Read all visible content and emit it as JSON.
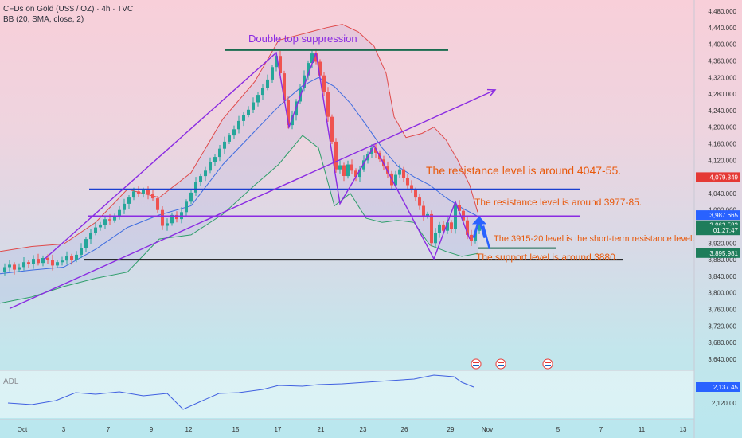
{
  "header": {
    "symbol_line": "CFDs on Gold (US$ / OZ) · 4h · TVC",
    "indicator_line": "BB (20, SMA, close, 2)",
    "adl_label": "ADL"
  },
  "colors": {
    "bull": "#26a69a",
    "bear": "#ef5350",
    "bb_upper": "#e04a4a",
    "bb_basis": "#3f6de0",
    "bb_lower": "#2e9e6a",
    "purple": "#8a2be2",
    "blue_line": "#1a3fd0",
    "black_line": "#111111",
    "dark_green_line": "#1a6b4f",
    "annotation_text": "#e8590c",
    "adl_line": "#3f5fe0"
  },
  "chart_data": {
    "type": "candlestick",
    "title": "CFDs on Gold (US$ / OZ) · 4h · TVC",
    "x_axis": {
      "ticks": [
        "Oct",
        "3",
        "7",
        "9",
        "12",
        "15",
        "17",
        "21",
        "23",
        "26",
        "29",
        "Nov",
        "5",
        "7",
        "11",
        "13"
      ]
    },
    "y_axis": {
      "range": [
        3620,
        4490
      ],
      "ticks": [
        "4,480.000",
        "4,440.000",
        "4,400.000",
        "4,360.000",
        "4,320.000",
        "4,280.000",
        "4,240.000",
        "4,200.000",
        "4,160.000",
        "4,120.000",
        "4,040.000",
        "4,000.000",
        "3,920.000",
        "3,880.000",
        "3,840.000",
        "3,800.000",
        "3,760.000",
        "3,720.000",
        "3,680.000",
        "3,640.000"
      ]
    },
    "price_labels": [
      {
        "text": "4,079.349",
        "value": 4079.349,
        "color": "#e53935"
      },
      {
        "text": "3,987.665",
        "value": 3987.665,
        "color": "#2962ff"
      },
      {
        "text": "3,963.582",
        "value": 3963.582,
        "color": "#1e7d5b"
      },
      {
        "text": "01:27:47",
        "value": 3951,
        "color": "#1e7d5b"
      },
      {
        "text": "3,895.981",
        "value": 3895.981,
        "color": "#1e7d5b"
      }
    ],
    "series": [
      {
        "name": "CFDs on Gold",
        "kind": "ohlc_close_path",
        "points": [
          [
            0,
            3850
          ],
          [
            6,
            3862
          ],
          [
            12,
            3868
          ],
          [
            18,
            3856
          ],
          [
            24,
            3862
          ],
          [
            30,
            3874
          ],
          [
            36,
            3870
          ],
          [
            42,
            3882
          ],
          [
            48,
            3872
          ],
          [
            54,
            3884
          ],
          [
            60,
            3880
          ],
          [
            66,
            3866
          ],
          [
            72,
            3874
          ],
          [
            78,
            3878
          ],
          [
            84,
            3888
          ],
          [
            90,
            3880
          ],
          [
            96,
            3892
          ],
          [
            102,
            3908
          ],
          [
            108,
            3930
          ],
          [
            114,
            3945
          ],
          [
            120,
            3958
          ],
          [
            126,
            3965
          ],
          [
            132,
            3978
          ],
          [
            138,
            3975
          ],
          [
            144,
            3985
          ],
          [
            150,
            4000
          ],
          [
            156,
            4015
          ],
          [
            162,
            4030
          ],
          [
            168,
            4045
          ],
          [
            174,
            4040
          ],
          [
            180,
            4048
          ],
          [
            186,
            4038
          ],
          [
            192,
            4028
          ],
          [
            198,
            4000
          ],
          [
            204,
            3962
          ],
          [
            210,
            3968
          ],
          [
            216,
            3988
          ],
          [
            222,
            3978
          ],
          [
            228,
            3995
          ],
          [
            234,
            4020
          ],
          [
            240,
            4042
          ],
          [
            246,
            4068
          ],
          [
            252,
            4082
          ],
          [
            258,
            4095
          ],
          [
            264,
            4115
          ],
          [
            270,
            4128
          ],
          [
            276,
            4148
          ],
          [
            282,
            4165
          ],
          [
            288,
            4180
          ],
          [
            294,
            4195
          ],
          [
            300,
            4215
          ],
          [
            306,
            4230
          ],
          [
            312,
            4242
          ],
          [
            318,
            4260
          ],
          [
            324,
            4278
          ],
          [
            330,
            4295
          ],
          [
            336,
            4315
          ],
          [
            342,
            4345
          ],
          [
            347,
            4372
          ],
          [
            352,
            4330
          ],
          [
            357,
            4265
          ],
          [
            362,
            4205
          ],
          [
            367,
            4228
          ],
          [
            372,
            4262
          ],
          [
            377,
            4295
          ],
          [
            382,
            4325
          ],
          [
            387,
            4355
          ],
          [
            392,
            4378
          ],
          [
            397,
            4358
          ],
          [
            402,
            4325
          ],
          [
            407,
            4285
          ],
          [
            412,
            4225
          ],
          [
            417,
            4165
          ],
          [
            422,
            4098
          ],
          [
            427,
            4108
          ],
          [
            432,
            4082
          ],
          [
            437,
            4110
          ],
          [
            442,
            4095
          ],
          [
            447,
            4080
          ],
          [
            452,
            4098
          ],
          [
            457,
            4120
          ],
          [
            462,
            4135
          ],
          [
            467,
            4150
          ],
          [
            472,
            4138
          ],
          [
            477,
            4122
          ],
          [
            482,
            4105
          ],
          [
            487,
            4088
          ],
          [
            492,
            4060
          ],
          [
            497,
            4085
          ],
          [
            502,
            4098
          ],
          [
            507,
            4078
          ],
          [
            512,
            4060
          ],
          [
            517,
            4048
          ],
          [
            522,
            4030
          ],
          [
            527,
            4010
          ],
          [
            532,
            3985
          ],
          [
            537,
            3990
          ],
          [
            542,
            3920
          ],
          [
            547,
            3945
          ],
          [
            552,
            3965
          ],
          [
            557,
            3950
          ],
          [
            562,
            3970
          ],
          [
            567,
            3955
          ],
          [
            572,
            4012
          ],
          [
            577,
            3998
          ],
          [
            582,
            3975
          ],
          [
            587,
            3940
          ],
          [
            592,
            3925
          ],
          [
            597,
            3950
          ],
          [
            602,
            3963
          ]
        ]
      },
      {
        "name": "BB upper",
        "kind": "band"
      },
      {
        "name": "BB basis",
        "kind": "band"
      },
      {
        "name": "BB lower",
        "kind": "band"
      }
    ],
    "bb_upper": [
      [
        0,
        3900
      ],
      [
        40,
        3912
      ],
      [
        80,
        3918
      ],
      [
        120,
        3970
      ],
      [
        160,
        4050
      ],
      [
        200,
        4030
      ],
      [
        240,
        4090
      ],
      [
        280,
        4220
      ],
      [
        320,
        4310
      ],
      [
        350,
        4410
      ],
      [
        380,
        4425
      ],
      [
        410,
        4440
      ],
      [
        430,
        4448
      ],
      [
        450,
        4430
      ],
      [
        470,
        4395
      ],
      [
        485,
        4330
      ],
      [
        495,
        4225
      ],
      [
        510,
        4175
      ],
      [
        530,
        4185
      ],
      [
        545,
        4200
      ],
      [
        560,
        4170
      ],
      [
        575,
        4120
      ],
      [
        590,
        4060
      ],
      [
        600,
        3995
      ]
    ],
    "bb_basis": [
      [
        0,
        3846
      ],
      [
        40,
        3855
      ],
      [
        80,
        3862
      ],
      [
        120,
        3905
      ],
      [
        160,
        3958
      ],
      [
        200,
        3988
      ],
      [
        240,
        4010
      ],
      [
        280,
        4110
      ],
      [
        320,
        4190
      ],
      [
        350,
        4250
      ],
      [
        380,
        4300
      ],
      [
        400,
        4320
      ],
      [
        420,
        4298
      ],
      [
        440,
        4258
      ],
      [
        460,
        4205
      ],
      [
        480,
        4150
      ],
      [
        500,
        4105
      ],
      [
        520,
        4080
      ],
      [
        540,
        4060
      ],
      [
        560,
        4030
      ],
      [
        580,
        4005
      ],
      [
        600,
        3985
      ]
    ],
    "bb_lower": [
      [
        0,
        3775
      ],
      [
        40,
        3790
      ],
      [
        80,
        3815
      ],
      [
        120,
        3835
      ],
      [
        160,
        3850
      ],
      [
        200,
        3930
      ],
      [
        240,
        3940
      ],
      [
        280,
        3990
      ],
      [
        320,
        4060
      ],
      [
        350,
        4110
      ],
      [
        380,
        4180
      ],
      [
        400,
        4150
      ],
      [
        420,
        4010
      ],
      [
        440,
        4040
      ],
      [
        460,
        3980
      ],
      [
        480,
        3970
      ],
      [
        500,
        3975
      ],
      [
        520,
        3970
      ],
      [
        540,
        3915
      ],
      [
        560,
        3900
      ],
      [
        580,
        3888
      ],
      [
        600,
        3895
      ]
    ],
    "annotations": {
      "texts": [
        {
          "text": "Double top suppression",
          "x": 312,
          "price": 4405,
          "color": "#8a2be2",
          "size": 13
        },
        {
          "text": "The resistance level is around 4047-55.",
          "x": 535,
          "price": 4086,
          "color": "#e8590c",
          "size": 14
        },
        {
          "text": "The resistance level is around 3977-85.",
          "x": 596,
          "price": 4011,
          "color": "#e8590c",
          "size": 12
        },
        {
          "text": "The 3915-20 level is the short-term resistance level.",
          "x": 620,
          "price": 3924,
          "color": "#e8590c",
          "size": 11
        },
        {
          "text": "The support level is around 3880.",
          "x": 598,
          "price": 3878,
          "color": "#e8590c",
          "size": 12
        }
      ],
      "hlines": [
        {
          "x1": 283,
          "x2": 563,
          "price": 4386,
          "color": "#1a6b4f",
          "width": 2
        },
        {
          "x1": 112,
          "x2": 728,
          "price": 4050,
          "color": "#1a3fd0",
          "width": 2
        },
        {
          "x1": 110,
          "x2": 728,
          "price": 3985,
          "color": "#8a2be2",
          "width": 2
        },
        {
          "x1": 600,
          "x2": 698,
          "price": 3908,
          "color": "#1a6b4f",
          "width": 2
        },
        {
          "x1": 106,
          "x2": 782,
          "price": 3880,
          "color": "#111111",
          "width": 2
        }
      ],
      "pattern_lines": [
        {
          "points": [
            [
              55,
              3880
            ],
            [
              347,
              4380
            ],
            [
              363,
              4200
            ],
            [
              397,
              4380
            ],
            [
              427,
              4015
            ],
            [
              470,
              4155
            ],
            [
              545,
              3882
            ],
            [
              572,
              4020
            ],
            [
              590,
              3930
            ]
          ],
          "color": "#8a2be2"
        }
      ],
      "trend_arrow": {
        "from": [
          12,
          3762
        ],
        "to": [
          622,
          4290
        ],
        "color": "#8a2be2"
      },
      "blue_arrow": {
        "x": 603,
        "from_price": 3925,
        "to_price": 3985,
        "color": "#2962ff"
      }
    }
  },
  "adl_chart": {
    "label": "ADL",
    "value_label": "2,137.45",
    "tick_label": "2,120.00",
    "points": [
      [
        10,
        506
      ],
      [
        40,
        508
      ],
      [
        70,
        503
      ],
      [
        95,
        493
      ],
      [
        120,
        495
      ],
      [
        150,
        492
      ],
      [
        180,
        497
      ],
      [
        210,
        494
      ],
      [
        230,
        514
      ],
      [
        250,
        505
      ],
      [
        275,
        494
      ],
      [
        300,
        493
      ],
      [
        330,
        489
      ],
      [
        350,
        484
      ],
      [
        380,
        485
      ],
      [
        400,
        483
      ],
      [
        430,
        482
      ],
      [
        460,
        480
      ],
      [
        490,
        478
      ],
      [
        520,
        476
      ],
      [
        545,
        471
      ],
      [
        570,
        473
      ],
      [
        580,
        480
      ],
      [
        595,
        486
      ]
    ]
  }
}
